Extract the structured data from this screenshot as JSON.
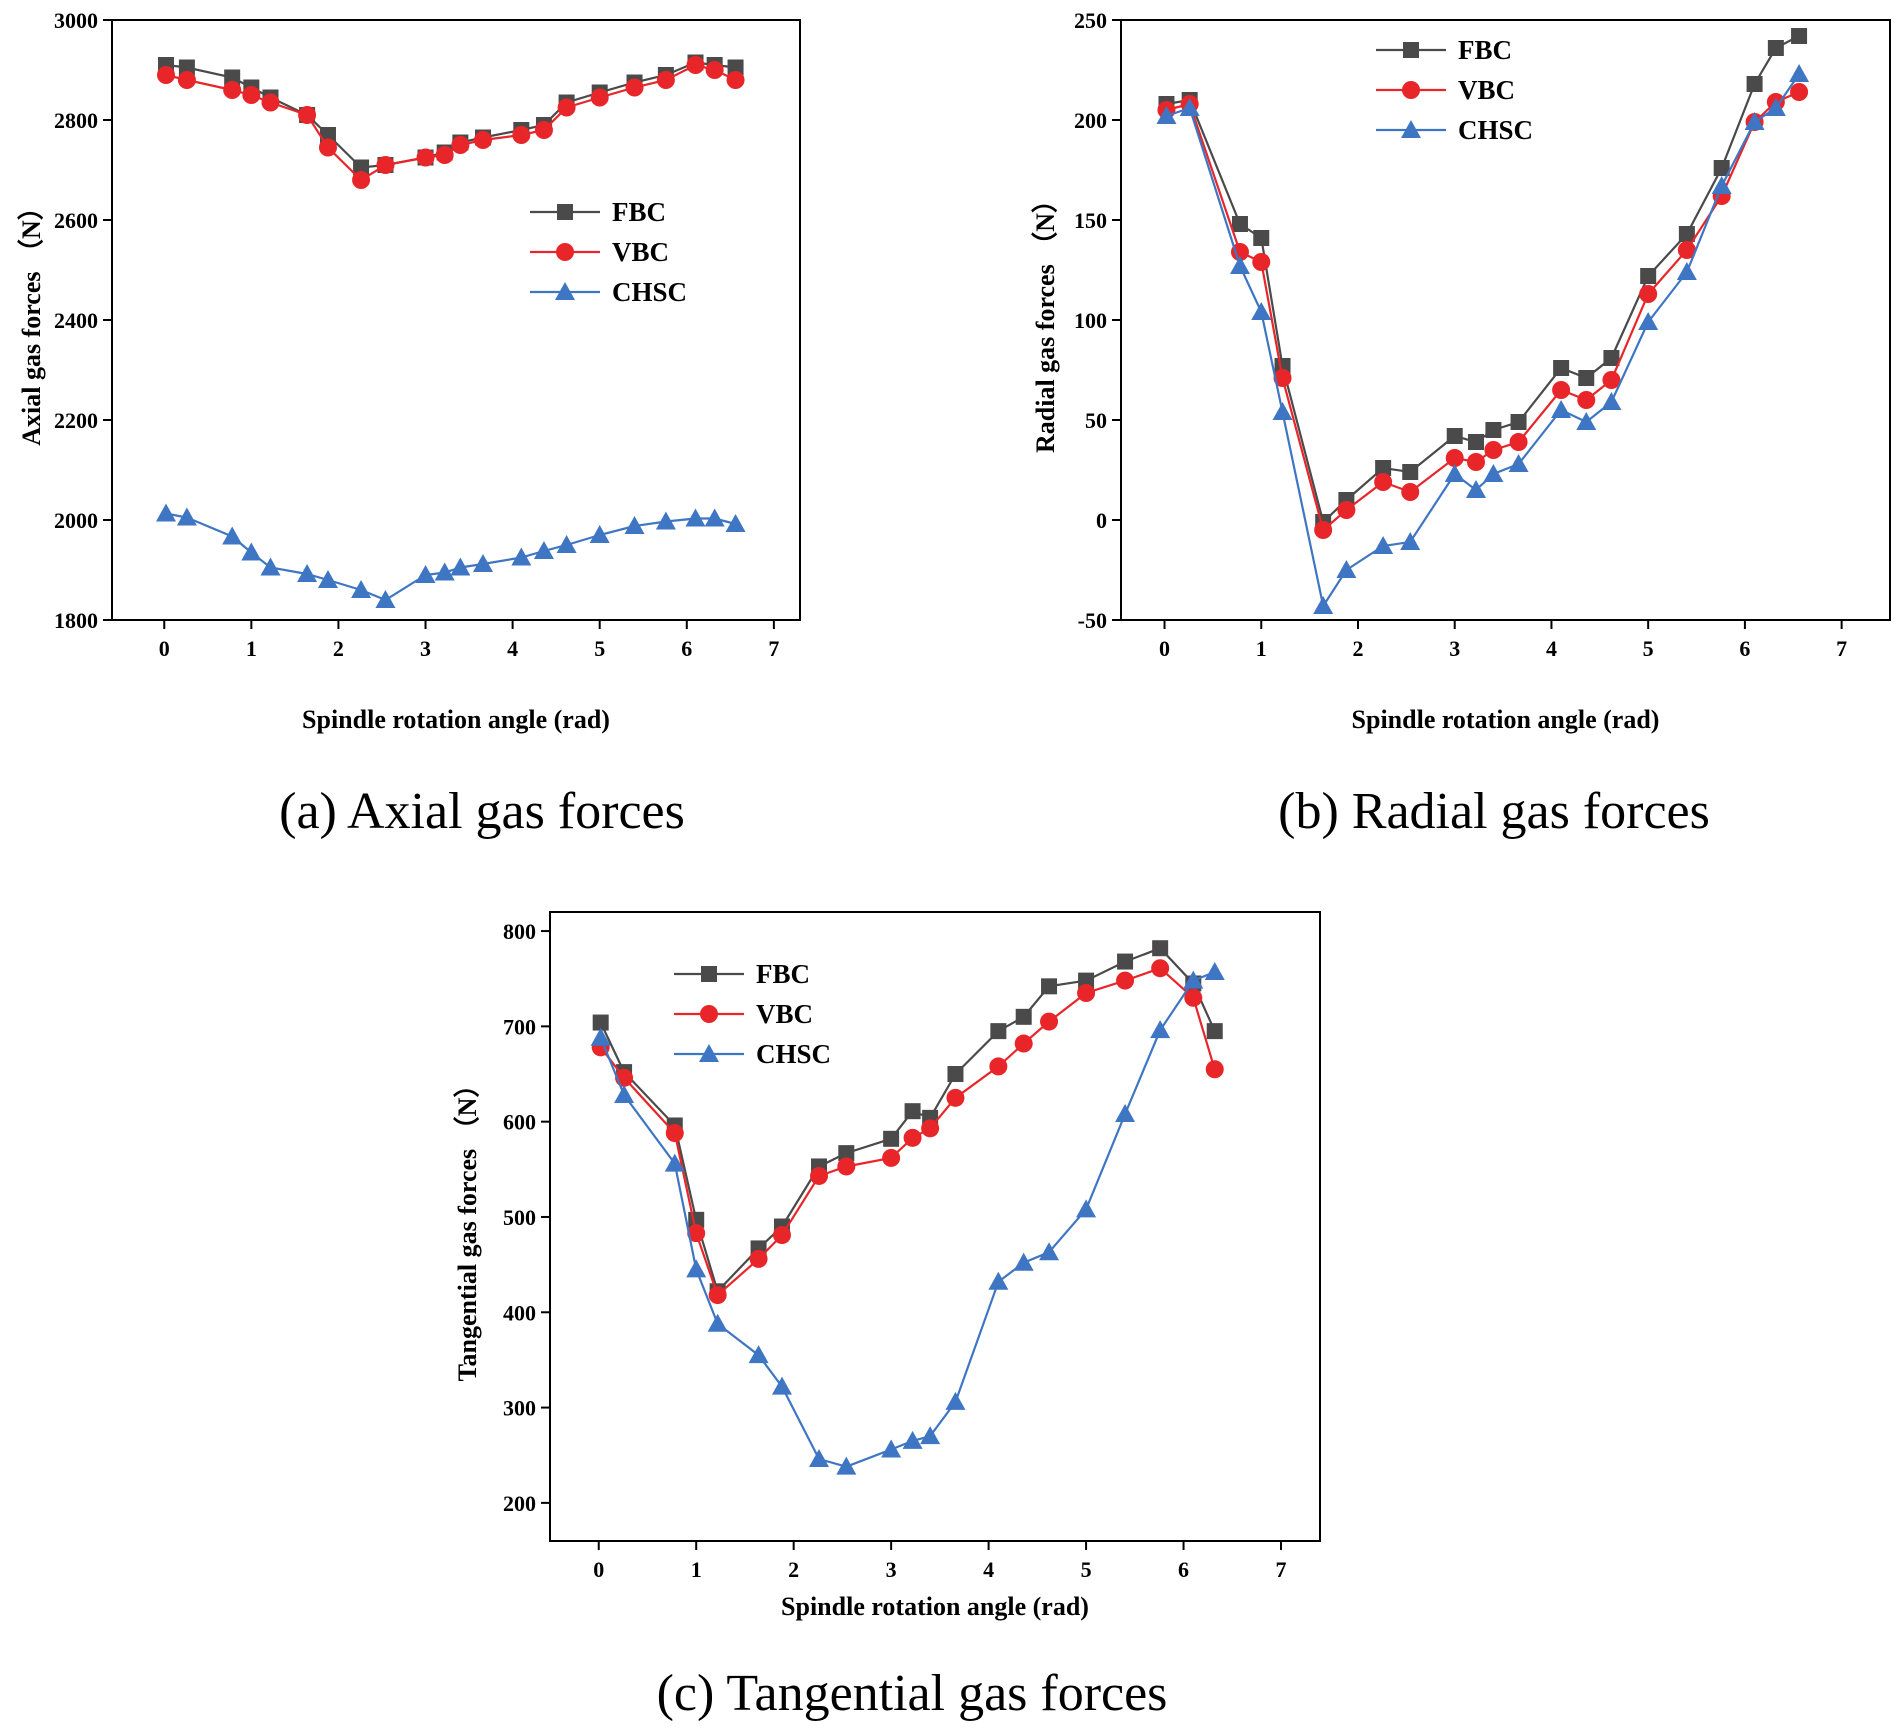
{
  "colors": {
    "FBC": "#4a4a4a",
    "VBC": "#e8262a",
    "CHSC": "#3f76c4"
  },
  "chart_data": [
    {
      "type": "line",
      "caption": "(a) Axial gas forces",
      "xlabel": "Spindle rotation angle (rad)",
      "ylabel": "Axial gas forces （N）",
      "xlim": [
        -0.6,
        7.3
      ],
      "ylim": [
        1800,
        3000
      ],
      "xticks": [
        0,
        1,
        2,
        3,
        4,
        5,
        6,
        7
      ],
      "yticks": [
        1800,
        2000,
        2200,
        2400,
        2600,
        2800,
        3000
      ],
      "legend_position": "center-right",
      "series": [
        {
          "name": "FBC",
          "marker": "square",
          "x": [
            0.02,
            0.26,
            0.78,
            1.0,
            1.22,
            1.64,
            1.88,
            2.26,
            2.54,
            3.0,
            3.22,
            3.4,
            3.66,
            4.1,
            4.36,
            4.62,
            5.0,
            5.4,
            5.76,
            6.1,
            6.32,
            6.56
          ],
          "y": [
            2910,
            2905,
            2885,
            2865,
            2845,
            2810,
            2770,
            2705,
            2710,
            2725,
            2735,
            2755,
            2765,
            2780,
            2790,
            2835,
            2855,
            2875,
            2890,
            2915,
            2910,
            2905
          ]
        },
        {
          "name": "VBC",
          "marker": "circle",
          "x": [
            0.02,
            0.26,
            0.78,
            1.0,
            1.22,
            1.64,
            1.88,
            2.26,
            2.54,
            3.0,
            3.22,
            3.4,
            3.66,
            4.1,
            4.36,
            4.62,
            5.0,
            5.4,
            5.76,
            6.1,
            6.32,
            6.56
          ],
          "y": [
            2890,
            2880,
            2860,
            2850,
            2835,
            2810,
            2745,
            2680,
            2710,
            2725,
            2730,
            2750,
            2760,
            2770,
            2780,
            2825,
            2845,
            2865,
            2880,
            2910,
            2900,
            2880
          ]
        },
        {
          "name": "CHSC",
          "marker": "triangle",
          "x": [
            0.02,
            0.26,
            0.78,
            1.0,
            1.22,
            1.64,
            1.88,
            2.26,
            2.54,
            3.0,
            3.22,
            3.4,
            3.66,
            4.1,
            4.36,
            4.62,
            5.0,
            5.4,
            5.76,
            6.1,
            6.32,
            6.56
          ],
          "y": [
            2013,
            2005,
            1967,
            1935,
            1905,
            1892,
            1880,
            1860,
            1840,
            1890,
            1895,
            1905,
            1912,
            1925,
            1938,
            1950,
            1970,
            1988,
            1997,
            2003,
            2003,
            1992
          ]
        }
      ]
    },
    {
      "type": "line",
      "caption": "(b) Radial gas forces",
      "xlabel": "Spindle rotation angle (rad)",
      "ylabel": "Radial gas forces （N）",
      "xlim": [
        -0.45,
        7.5
      ],
      "ylim": [
        -50,
        250
      ],
      "xticks": [
        0,
        1,
        2,
        3,
        4,
        5,
        6,
        7
      ],
      "yticks": [
        -50,
        0,
        50,
        100,
        150,
        200,
        250
      ],
      "legend_position": "top-center",
      "series": [
        {
          "name": "FBC",
          "marker": "square",
          "x": [
            0.02,
            0.26,
            0.78,
            1.0,
            1.22,
            1.64,
            1.88,
            2.26,
            2.54,
            3.0,
            3.22,
            3.4,
            3.66,
            4.1,
            4.36,
            4.62,
            5.0,
            5.4,
            5.76,
            6.1,
            6.32,
            6.56
          ],
          "y": [
            208,
            210,
            148,
            141,
            77,
            -1,
            10,
            26,
            24,
            42,
            39,
            45,
            49,
            76,
            71,
            81,
            122,
            143,
            176,
            218,
            236,
            242
          ]
        },
        {
          "name": "VBC",
          "marker": "circle",
          "x": [
            0.02,
            0.26,
            0.78,
            1.0,
            1.22,
            1.64,
            1.88,
            2.26,
            2.54,
            3.0,
            3.22,
            3.4,
            3.66,
            4.1,
            4.36,
            4.62,
            5.0,
            5.4,
            5.76,
            6.1,
            6.32,
            6.56
          ],
          "y": [
            205,
            208,
            134,
            129,
            71,
            -5,
            5,
            19,
            14,
            31,
            29,
            35,
            39,
            65,
            60,
            70,
            113,
            135,
            162,
            199,
            209,
            214
          ]
        },
        {
          "name": "CHSC",
          "marker": "triangle",
          "x": [
            0.02,
            0.26,
            0.78,
            1.0,
            1.22,
            1.64,
            1.88,
            2.26,
            2.54,
            3.0,
            3.22,
            3.4,
            3.66,
            4.1,
            4.36,
            4.62,
            5.0,
            5.4,
            5.76,
            6.1,
            6.32,
            6.56
          ],
          "y": [
            202,
            206,
            127,
            104,
            54,
            -43,
            -25,
            -13,
            -11,
            23,
            15,
            23,
            28,
            55,
            49,
            59,
            99,
            124,
            167,
            199,
            206,
            223
          ]
        }
      ]
    },
    {
      "type": "line",
      "caption": "(c) Tangential gas forces",
      "xlabel": "Spindle rotation angle (rad)",
      "ylabel": "Tangential gas forces （N）",
      "xlim": [
        -0.5,
        7.4
      ],
      "ylim": [
        160,
        820
      ],
      "xticks": [
        0,
        1,
        2,
        3,
        4,
        5,
        6,
        7
      ],
      "yticks": [
        200,
        300,
        400,
        500,
        600,
        700,
        800
      ],
      "legend_position": "top-left",
      "series": [
        {
          "name": "FBC",
          "marker": "square",
          "x": [
            0.02,
            0.26,
            0.78,
            1.0,
            1.22,
            1.64,
            1.88,
            2.26,
            2.54,
            3.0,
            3.22,
            3.4,
            3.66,
            4.1,
            4.36,
            4.62,
            5.0,
            5.4,
            5.76,
            6.1,
            6.32
          ],
          "y": [
            704,
            652,
            596,
            497,
            422,
            467,
            490,
            553,
            567,
            582,
            611,
            604,
            650,
            695,
            710,
            742,
            748,
            768,
            782,
            745,
            695
          ]
        },
        {
          "name": "VBC",
          "marker": "circle",
          "x": [
            0.02,
            0.26,
            0.78,
            1.0,
            1.22,
            1.64,
            1.88,
            2.26,
            2.54,
            3.0,
            3.22,
            3.4,
            3.66,
            4.1,
            4.36,
            4.62,
            5.0,
            5.4,
            5.76,
            6.1,
            6.32
          ],
          "y": [
            678,
            646,
            588,
            483,
            418,
            456,
            481,
            543,
            553,
            562,
            583,
            593,
            625,
            658,
            682,
            705,
            735,
            748,
            761,
            730,
            655
          ]
        },
        {
          "name": "CHSC",
          "marker": "triangle",
          "x": [
            0.02,
            0.26,
            0.78,
            1.0,
            1.22,
            1.64,
            1.88,
            2.26,
            2.54,
            3.0,
            3.22,
            3.4,
            3.66,
            4.1,
            4.36,
            4.62,
            5.0,
            5.4,
            5.76,
            6.1,
            6.32
          ],
          "y": [
            688,
            628,
            556,
            445,
            388,
            355,
            322,
            246,
            238,
            256,
            265,
            270,
            306,
            432,
            452,
            463,
            508,
            608,
            696,
            748,
            757
          ]
        }
      ]
    }
  ]
}
